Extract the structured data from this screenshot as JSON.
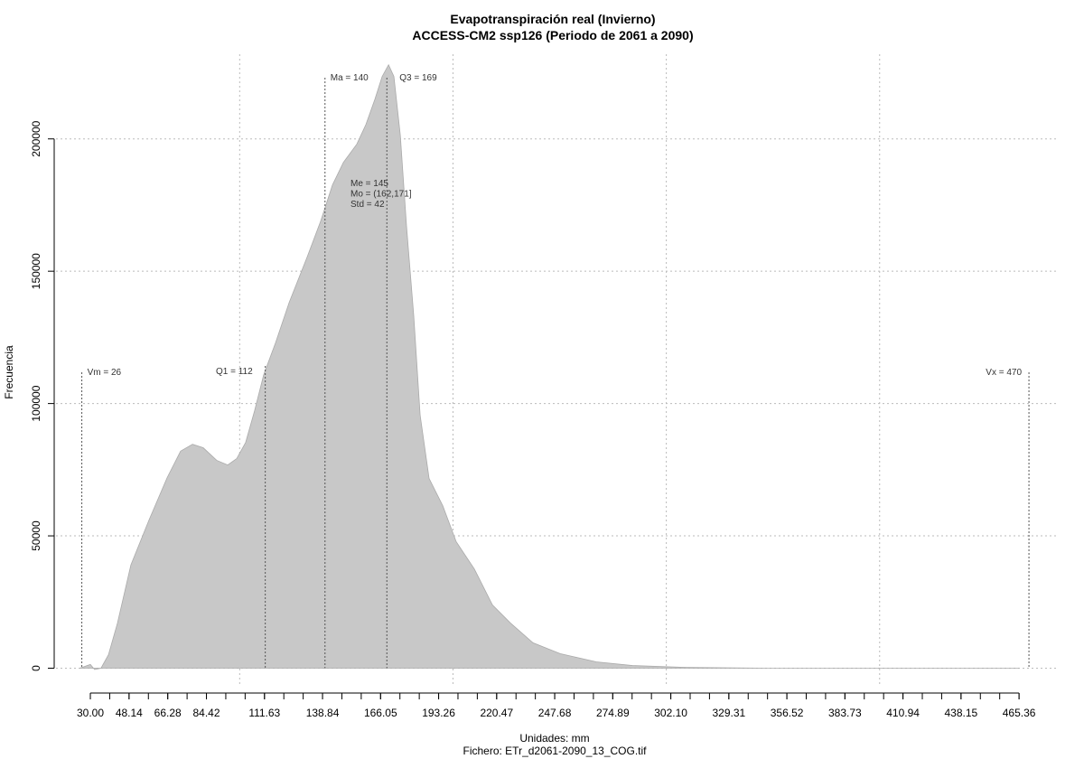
{
  "chart_data": {
    "type": "area",
    "title": "Evapotranspiración real (Invierno)",
    "subtitle": "ACCESS-CM2 ssp126 (Periodo de 2061 a 2090)",
    "xlabel": "Unidades: mm",
    "caption": "Fichero: ETr_d2061-2090_13_COG.tif",
    "ylabel": "Frecuencia",
    "color": "#c8c8c8",
    "grid": true,
    "x": [
      25,
      30,
      32,
      35,
      38.5,
      42.7,
      49,
      57.5,
      66,
      72.3,
      77.9,
      82.9,
      89.3,
      94.4,
      98.6,
      102.8,
      107,
      111.3,
      116.8,
      123.2,
      131.6,
      138,
      143.5,
      148.6,
      154.9,
      159.2,
      163.4,
      166.8,
      169.8,
      172.3,
      175.3,
      178.2,
      181.6,
      184.6,
      188.8,
      195.2,
      201.5,
      210,
      218.5,
      226.9,
      237.5,
      250.2,
      267.2,
      284.1,
      309.5,
      347.6,
      465.4
    ],
    "values": [
      0,
      1400,
      -500,
      0,
      5100,
      17000,
      39000,
      56000,
      72000,
      82000,
      84600,
      83300,
      78500,
      76800,
      79200,
      85300,
      97300,
      111000,
      122900,
      138200,
      155300,
      169000,
      182600,
      191100,
      198000,
      205500,
      215000,
      223600,
      228000,
      223600,
      201400,
      167200,
      133100,
      95600,
      71700,
      61400,
      47800,
      37500,
      23900,
      17100,
      9600,
      5500,
      2400,
      1000,
      300,
      0,
      0
    ],
    "xlim": [
      13.9,
      483.1
    ],
    "ylim": [
      -7000,
      232000
    ],
    "yticks": [
      0,
      50000,
      100000,
      150000,
      200000
    ],
    "xgrid": [
      100,
      200,
      300,
      400
    ],
    "xticks": [
      {
        "value": 30,
        "label": "30.00"
      },
      48.14,
      66.28,
      84.42,
      111.63,
      138.84,
      166.05,
      193.26,
      220.47,
      247.68,
      274.89,
      {
        "value": 302.1,
        "label": "302.10"
      },
      329.31,
      356.52,
      383.73,
      410.94,
      438.15,
      465.36
    ],
    "xminor_ticks": [
      30,
      39.07,
      48.14,
      57.21,
      66.28,
      75.35,
      84.42,
      93.49,
      102.56,
      111.63,
      120.7,
      129.77,
      138.84,
      147.91,
      156.98,
      166.05,
      175.12,
      184.19,
      193.26,
      202.33,
      211.4,
      220.47,
      229.54,
      238.61,
      247.68,
      256.75,
      265.82,
      274.89,
      283.96,
      293.03,
      302.1,
      311.17,
      320.24,
      329.31,
      338.38,
      347.45,
      356.52,
      365.59,
      374.66,
      383.73,
      392.8,
      401.87,
      410.94,
      420.01,
      429.08,
      438.15,
      447.22,
      456.29,
      465.36
    ],
    "annotations": [
      {
        "label": "Vm = 26",
        "x": 26
      },
      {
        "label": "Q1 = 112",
        "x": 112
      },
      {
        "label": "Ma = 140",
        "x": 140
      },
      {
        "label": "Q3 = 169",
        "x": 169
      },
      {
        "label": "Vx = 470",
        "x": 470
      }
    ],
    "stats": [
      "Me = 145",
      "Mo = (162,171]",
      "Std = 42"
    ]
  }
}
